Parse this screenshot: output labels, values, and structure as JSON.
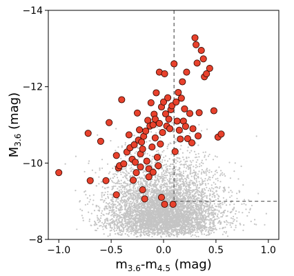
{
  "chart_data": {
    "type": "scatter",
    "title": "",
    "xlabel": {
      "main": "m",
      "sub1": "3.6",
      "mid": "-m",
      "sub2": "4.5",
      "tail": " (mag)"
    },
    "ylabel": {
      "main": "M",
      "sub": "3.6",
      "tail": " (mag)"
    },
    "xlim": [
      -1.1,
      1.1
    ],
    "ylim": [
      -8,
      -14
    ],
    "y_inverted": true,
    "x_ticks": [
      "−1.0",
      "−0.5",
      "0.0",
      "0.5",
      "1.0"
    ],
    "x_tick_values": [
      -1.0,
      -0.5,
      0.0,
      0.5,
      1.0
    ],
    "y_ticks": [
      "−8",
      "−10",
      "−12",
      "−14"
    ],
    "y_tick_values": [
      -8,
      -10,
      -12,
      -14
    ],
    "grid": false,
    "background_cloud": {
      "color": "#c4c4c4",
      "description_of_population": "dense field population",
      "count": 5500,
      "center": [
        0.0,
        -8.4
      ],
      "spread": [
        0.27,
        0.55
      ],
      "x_range": [
        -1.05,
        1.05
      ],
      "y_range": [
        -8.0,
        -11.2
      ]
    },
    "cut_lines": {
      "color": "#555555",
      "style": "dashed",
      "vertical_x": 0.1,
      "horizontal_y": -9.0,
      "vertical_y_range": [
        -14,
        -9.0
      ],
      "horizontal_x_range": [
        0.1,
        1.1
      ]
    },
    "highlight_series": {
      "fill": "#e8412c",
      "edge": "#3a0d06",
      "points": [
        [
          -1.0,
          -9.75
        ],
        [
          -0.72,
          -10.78
        ],
        [
          -0.7,
          -9.54
        ],
        [
          -0.6,
          -10.57
        ],
        [
          -0.55,
          -9.54
        ],
        [
          -0.52,
          -11.06
        ],
        [
          -0.45,
          -9.17
        ],
        [
          -0.45,
          -10.2
        ],
        [
          -0.43,
          -9.87
        ],
        [
          -0.42,
          -9.93
        ],
        [
          -0.4,
          -11.66
        ],
        [
          -0.38,
          -9.98
        ],
        [
          -0.35,
          -10.29
        ],
        [
          -0.33,
          -10.74
        ],
        [
          -0.32,
          -10.4
        ],
        [
          -0.3,
          -10.1
        ],
        [
          -0.29,
          -9.55
        ],
        [
          -0.28,
          -10.48
        ],
        [
          -0.27,
          -10.02
        ],
        [
          -0.26,
          -9.75
        ],
        [
          -0.25,
          -11.31
        ],
        [
          -0.24,
          -10.6
        ],
        [
          -0.23,
          -10.87
        ],
        [
          -0.22,
          -10.24
        ],
        [
          -0.22,
          -9.9
        ],
        [
          -0.21,
          -10.55
        ],
        [
          -0.2,
          -9.3
        ],
        [
          -0.2,
          -10.37
        ],
        [
          -0.19,
          -10.7
        ],
        [
          -0.18,
          -9.06
        ],
        [
          -0.17,
          -10.84
        ],
        [
          -0.16,
          -10.05
        ],
        [
          -0.15,
          -11.12
        ],
        [
          -0.14,
          -9.64
        ],
        [
          -0.14,
          -9.85
        ],
        [
          -0.13,
          -10.97
        ],
        [
          -0.12,
          -11.58
        ],
        [
          -0.11,
          -10.42
        ],
        [
          -0.1,
          -9.76
        ],
        [
          -0.1,
          -11.0
        ],
        [
          -0.09,
          -11.28
        ],
        [
          -0.08,
          -10.66
        ],
        [
          -0.08,
          -11.15
        ],
        [
          -0.07,
          -11.84
        ],
        [
          -0.06,
          -10.15
        ],
        [
          -0.05,
          -9.93
        ],
        [
          -0.04,
          -11.04
        ],
        [
          -0.04,
          -12.38
        ],
        [
          -0.03,
          -10.5
        ],
        [
          -0.02,
          -11.47
        ],
        [
          -0.02,
          -9.1
        ],
        [
          -0.01,
          -10.8
        ],
        [
          0.0,
          -11.6
        ],
        [
          0.01,
          -12.34
        ],
        [
          0.01,
          -8.92
        ],
        [
          0.02,
          -11.29
        ],
        [
          0.03,
          -10.97
        ],
        [
          0.04,
          -11.71
        ],
        [
          0.05,
          -11.15
        ],
        [
          0.06,
          -10.9
        ],
        [
          0.07,
          -11.4
        ],
        [
          0.08,
          -11.5
        ],
        [
          0.09,
          -8.92
        ],
        [
          0.1,
          -12.6
        ],
        [
          0.11,
          -10.3
        ],
        [
          0.12,
          -11.6
        ],
        [
          0.13,
          -11.1
        ],
        [
          0.14,
          -11.85
        ],
        [
          0.15,
          -10.86
        ],
        [
          0.16,
          -10.63
        ],
        [
          0.17,
          -11.7
        ],
        [
          0.18,
          -12.13
        ],
        [
          0.19,
          -11.1
        ],
        [
          0.2,
          -11.42
        ],
        [
          0.21,
          -10.96
        ],
        [
          0.22,
          -12.38
        ],
        [
          0.23,
          -10.64
        ],
        [
          0.25,
          -11.3
        ],
        [
          0.27,
          -10.53
        ],
        [
          0.28,
          -10.9
        ],
        [
          0.3,
          -13.28
        ],
        [
          0.31,
          -13.1
        ],
        [
          0.32,
          -12.62
        ],
        [
          0.33,
          -10.71
        ],
        [
          0.34,
          -11.32
        ],
        [
          0.36,
          -12.95
        ],
        [
          0.38,
          -12.73
        ],
        [
          0.39,
          -12.26
        ],
        [
          0.41,
          -12.34
        ],
        [
          0.44,
          -12.48
        ],
        [
          0.48,
          -11.37
        ],
        [
          0.52,
          -10.68
        ],
        [
          0.55,
          -10.76
        ]
      ]
    }
  }
}
